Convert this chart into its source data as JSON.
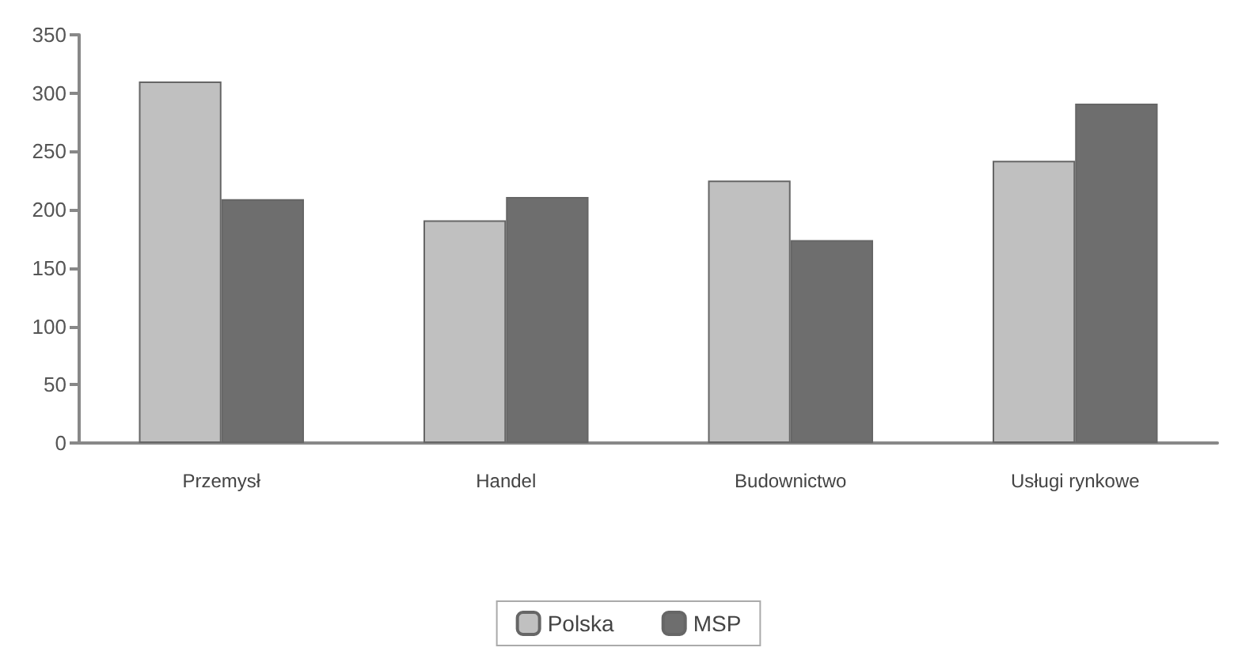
{
  "chart_data": {
    "type": "bar",
    "categories": [
      "Przemysł",
      "Handel",
      "Budownictwo",
      "Usługi rynkowe"
    ],
    "series": [
      {
        "name": "Polska",
        "color": "#c0c0c0",
        "values": [
          310,
          191,
          225,
          242
        ]
      },
      {
        "name": "MSP",
        "color": "#6e6e6e",
        "values": [
          209,
          211,
          174,
          291
        ]
      }
    ],
    "ylim": [
      0,
      350
    ],
    "yticks": [
      0,
      50,
      100,
      150,
      200,
      250,
      300,
      350
    ],
    "grid": false,
    "legend": "bottom"
  }
}
